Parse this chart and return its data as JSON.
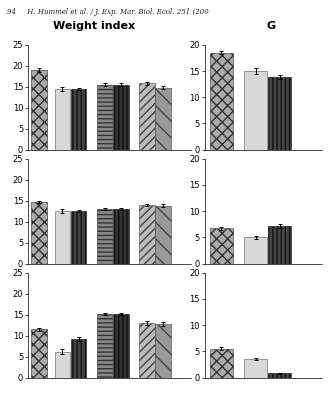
{
  "title_left": "Weight index",
  "title_right": "G",
  "header_text": "94     H. Hummel et al. / J. Exp. Mar. Biol. Ecol. 251 (200",
  "ylim_left": [
    0,
    25
  ],
  "ylim_right": [
    0,
    20
  ],
  "yticks_left": [
    0,
    5,
    10,
    15,
    20,
    25
  ],
  "yticks_right": [
    0,
    5,
    10,
    15,
    20
  ],
  "rows": [
    {
      "left": {
        "groups": [
          {
            "bars": [
              19.0
            ],
            "errors": [
              0.4
            ],
            "patterns": [
              "dot_cross"
            ]
          },
          {
            "bars": [
              14.5,
              14.5
            ],
            "errors": [
              0.4,
              0.3
            ],
            "patterns": [
              "light",
              "vline_dark"
            ]
          },
          {
            "bars": [
              15.5,
              15.5
            ],
            "errors": [
              0.3,
              0.3
            ],
            "patterns": [
              "hline_med",
              "vline_dark2"
            ]
          },
          {
            "bars": [
              15.8,
              14.8
            ],
            "errors": [
              0.4,
              0.3
            ],
            "patterns": [
              "fwd_hatch",
              "back_hatch"
            ]
          }
        ]
      },
      "right": {
        "groups": [
          {
            "bars": [
              18.5
            ],
            "errors": [
              0.3
            ],
            "patterns": [
              "dot_cross"
            ]
          },
          {
            "bars": [
              15.0,
              13.8
            ],
            "errors": [
              0.5,
              0.4
            ],
            "patterns": [
              "light",
              "vline_dark"
            ]
          }
        ]
      }
    },
    {
      "left": {
        "groups": [
          {
            "bars": [
              14.7
            ],
            "errors": [
              0.3
            ],
            "patterns": [
              "dot_cross"
            ]
          },
          {
            "bars": [
              12.5,
              12.5
            ],
            "errors": [
              0.4,
              0.3
            ],
            "patterns": [
              "light",
              "vline_dark"
            ]
          },
          {
            "bars": [
              13.0,
              13.0
            ],
            "errors": [
              0.3,
              0.3
            ],
            "patterns": [
              "hline_med",
              "vline_dark2"
            ]
          },
          {
            "bars": [
              14.0,
              13.8
            ],
            "errors": [
              0.3,
              0.3
            ],
            "patterns": [
              "fwd_hatch",
              "back_hatch"
            ]
          }
        ]
      },
      "right": {
        "groups": [
          {
            "bars": [
              6.7
            ],
            "errors": [
              0.3
            ],
            "patterns": [
              "dot_cross"
            ]
          },
          {
            "bars": [
              5.0,
              7.2
            ],
            "errors": [
              0.3,
              0.4
            ],
            "patterns": [
              "light",
              "vline_dark"
            ]
          }
        ]
      }
    },
    {
      "left": {
        "groups": [
          {
            "bars": [
              11.5
            ],
            "errors": [
              0.4
            ],
            "patterns": [
              "dot_cross"
            ]
          },
          {
            "bars": [
              6.2,
              9.2
            ],
            "errors": [
              0.5,
              0.4
            ],
            "patterns": [
              "light",
              "vline_dark"
            ]
          },
          {
            "bars": [
              15.2,
              15.2
            ],
            "errors": [
              0.3,
              0.3
            ],
            "patterns": [
              "hline_med",
              "vline_dark2"
            ]
          },
          {
            "bars": [
              13.0,
              12.8
            ],
            "errors": [
              0.4,
              0.4
            ],
            "patterns": [
              "fwd_hatch",
              "back_hatch"
            ]
          }
        ]
      },
      "right": {
        "groups": [
          {
            "bars": [
              5.5
            ],
            "errors": [
              0.3
            ],
            "patterns": [
              "dot_cross"
            ]
          },
          {
            "bars": [
              3.5,
              0.8
            ],
            "errors": [
              0.2,
              0.15
            ],
            "patterns": [
              "light",
              "vline_dark"
            ]
          }
        ]
      }
    }
  ]
}
